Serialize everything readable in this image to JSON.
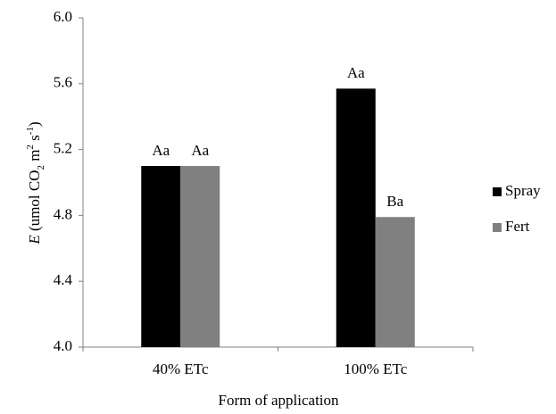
{
  "chart_data": {
    "type": "bar",
    "x_label": "Form of application",
    "y_label": [
      "E",
      " (umol CO",
      "2",
      " m",
      "2",
      " s",
      "-1",
      ")"
    ],
    "categories": [
      "40% ETc",
      "100% ETc"
    ],
    "series": [
      {
        "name": "Spray",
        "color": "#000000",
        "values": [
          5.1,
          5.57
        ],
        "annotations": [
          "Aa",
          "Aa"
        ]
      },
      {
        "name": "Fert",
        "color": "#808080",
        "values": [
          5.1,
          4.79
        ],
        "annotations": [
          "Aa",
          "Ba"
        ]
      }
    ],
    "ylim": [
      4.0,
      6.0
    ],
    "yticks": [
      {
        "value": 4,
        "label": "4.0"
      },
      4.4,
      4.8,
      5.2,
      5.6,
      {
        "value": 6,
        "label": "6.0"
      }
    ],
    "grid": false,
    "legend": "right"
  }
}
